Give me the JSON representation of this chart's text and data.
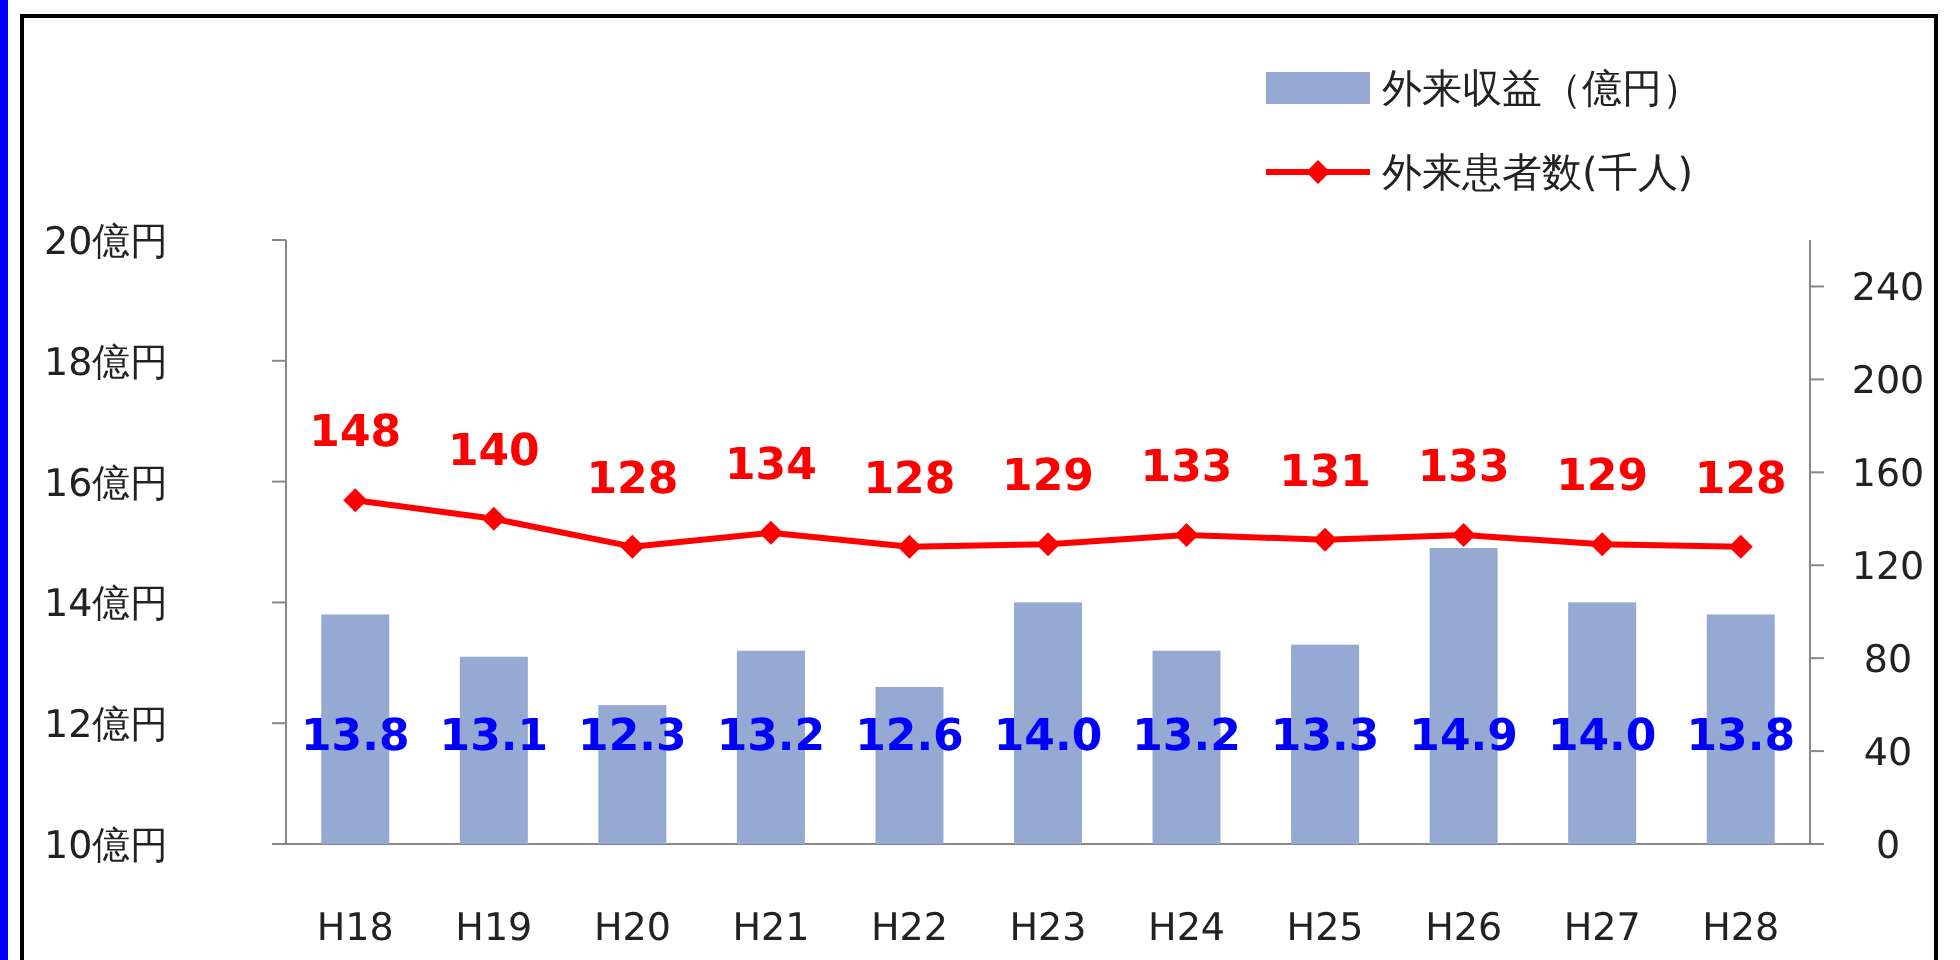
{
  "chart_data": {
    "type": "bar",
    "categories": [
      "H18",
      "H19",
      "H20",
      "H21",
      "H22",
      "H23",
      "H24",
      "H25",
      "H26",
      "H27",
      "H28"
    ],
    "series": [
      {
        "name": "外来収益（億円）",
        "color": "#95a9d2",
        "values": [
          13.8,
          13.1,
          12.3,
          13.2,
          12.6,
          14.0,
          13.2,
          13.3,
          14.9,
          14.0,
          13.8
        ],
        "value_labels": [
          "13.8",
          "13.1",
          "12.3",
          "13.2",
          "12.6",
          "14.0",
          "13.2",
          "13.3",
          "14.9",
          "14.0",
          "13.8"
        ]
      },
      {
        "type": "line",
        "name": "外来患者数(千人)",
        "color": "#ff0000",
        "axis": "y2",
        "marker": "diamond",
        "values": [
          148,
          140,
          128,
          134,
          128,
          129,
          133,
          131,
          133,
          129,
          128
        ],
        "value_labels": [
          "148",
          "140",
          "128",
          "134",
          "128",
          "129",
          "133",
          "131",
          "133",
          "129",
          "128"
        ]
      }
    ],
    "ylim": [
      10,
      20
    ],
    "yticks": [
      {
        "value": 10,
        "label": "10億円"
      },
      {
        "value": 12,
        "label": "12億円"
      },
      {
        "value": 14,
        "label": "14億円"
      },
      {
        "value": 16,
        "label": "16億円"
      },
      {
        "value": 18,
        "label": "18億円"
      },
      {
        "value": 20,
        "label": "20億円"
      }
    ],
    "y2lim": [
      0,
      260
    ],
    "y2ticks": [
      0,
      40,
      80,
      120,
      160,
      200,
      240
    ],
    "legend": "top right"
  }
}
